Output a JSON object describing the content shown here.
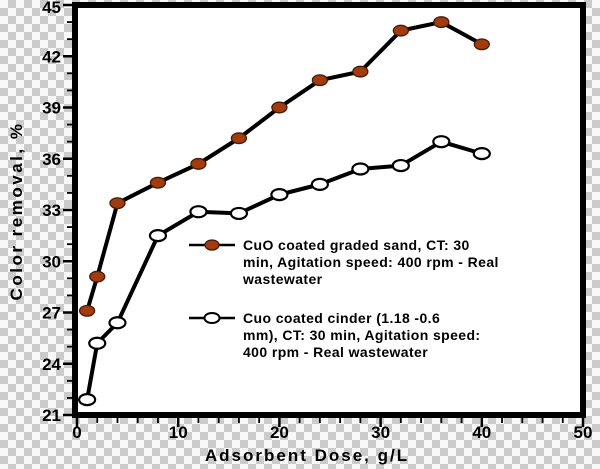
{
  "chart_data": {
    "type": "line",
    "title": "",
    "xlabel": "Adsorbent Dose, g/L",
    "ylabel": "Color removal, %",
    "xlim": [
      0,
      50
    ],
    "ylim": [
      21,
      45
    ],
    "xticks": [
      0,
      10,
      20,
      30,
      40,
      50
    ],
    "yticks": [
      21,
      24,
      27,
      30,
      33,
      36,
      39,
      42,
      45
    ],
    "x_minor_step": 2,
    "y_minor_step": 1,
    "grid": false,
    "legend_position": "inside-center-left",
    "x": [
      1,
      2,
      4,
      8,
      12,
      16,
      20,
      24,
      28,
      32,
      36,
      40
    ],
    "series": [
      {
        "name": "CuO coated graded sand, CT: 30 min, Agitation speed: 400 rpm - Real wastewater",
        "legend_lines": [
          "CuO coated graded sand, CT: 30",
          "min, Agitation speed: 400 rpm - Real",
          "wastewater"
        ],
        "marker": "filled-circle",
        "marker_color": "#a03c10",
        "marker_edge_color": "#4a1a06",
        "line_color": "#000000",
        "values": [
          27.1,
          29.1,
          33.4,
          34.6,
          35.7,
          37.2,
          39.0,
          40.6,
          41.1,
          43.5,
          44.0,
          42.7
        ]
      },
      {
        "name": "Cuo coated cinder (1.18 -0.6 mm), CT: 30 min, Agitation speed: 400 rpm - Real wastewater",
        "legend_lines": [
          "Cuo coated cinder (1.18 -0.6",
          "mm), CT: 30 min, Agitation speed:",
          "400 rpm - Real wastewater"
        ],
        "marker": "open-circle",
        "marker_color": "#ffffff",
        "marker_edge_color": "#000000",
        "line_color": "#000000",
        "values": [
          21.9,
          25.2,
          26.4,
          31.5,
          32.9,
          32.8,
          33.9,
          34.5,
          35.4,
          35.6,
          37.0,
          36.3
        ]
      }
    ],
    "colors": {
      "frame": "#000000",
      "plot_bg": "#ffffff",
      "text": "#000000",
      "checker_light": "#f8f8f8",
      "checker_dark": "#cbcbcb"
    }
  }
}
